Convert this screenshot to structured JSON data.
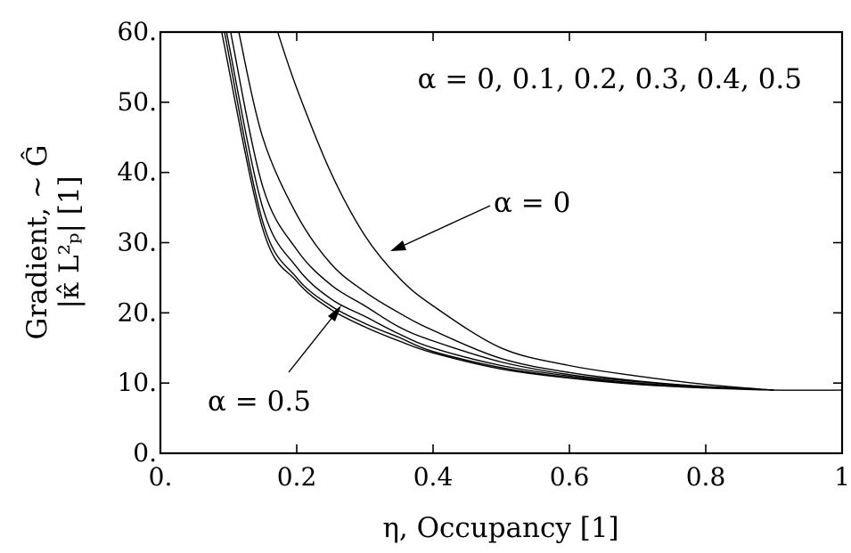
{
  "chart_data": {
    "type": "line",
    "xlabel": "η, Occupancy [1]",
    "ylabel_line1": "Gradient, ∼ Ĝ",
    "ylabel_line2": "|κ̂ L²ₚ|  [1]",
    "xlim": [
      0,
      1
    ],
    "ylim": [
      0,
      60
    ],
    "xticks": [
      0,
      0.2,
      0.4,
      0.6,
      0.8,
      1
    ],
    "xtick_labels": [
      "0.",
      "0.2",
      "0.4",
      "0.6",
      "0.8",
      "1"
    ],
    "yticks": [
      0,
      10,
      20,
      30,
      40,
      50,
      60
    ],
    "ytick_labels": [
      "0.",
      "10.",
      "20.",
      "30.",
      "40.",
      "50.",
      "60."
    ],
    "grid": false,
    "legend": "none",
    "annotations": {
      "alpha_list": "α = 0, 0.1, 0.2, 0.3, 0.4, 0.5",
      "alpha_zero": "α = 0",
      "alpha_half": "α = 0.5"
    },
    "series": [
      {
        "name": "α = 0",
        "x": [
          0.172,
          0.2,
          0.25,
          0.3,
          0.35,
          0.4,
          0.5,
          0.6,
          0.7,
          0.8,
          0.9
        ],
        "y": [
          60,
          52,
          40,
          31,
          25,
          21,
          15,
          12.5,
          11,
          9.8,
          9.0
        ]
      },
      {
        "name": "α = 0.1",
        "x": [
          0.115,
          0.15,
          0.2,
          0.25,
          0.3,
          0.35,
          0.4,
          0.5,
          0.6,
          0.7,
          0.8,
          0.9
        ],
        "y": [
          60,
          45,
          34,
          27,
          23,
          20,
          17.5,
          13.5,
          11.5,
          10.3,
          9.5,
          9.0
        ]
      },
      {
        "name": "α = 0.2",
        "x": [
          0.103,
          0.15,
          0.2,
          0.25,
          0.3,
          0.35,
          0.4,
          0.5,
          0.6,
          0.7,
          0.8,
          0.9
        ],
        "y": [
          60,
          38,
          29,
          24,
          21,
          18,
          16,
          13,
          11.2,
          10.2,
          9.5,
          9.0
        ]
      },
      {
        "name": "α = 0.3",
        "x": [
          0.097,
          0.15,
          0.2,
          0.25,
          0.3,
          0.35,
          0.4,
          0.5,
          0.6,
          0.7,
          0.8,
          0.9
        ],
        "y": [
          60,
          35,
          26.5,
          22,
          19.5,
          17,
          15,
          12.5,
          11,
          10,
          9.4,
          9.0
        ]
      },
      {
        "name": "α = 0.4",
        "x": [
          0.094,
          0.15,
          0.2,
          0.25,
          0.3,
          0.35,
          0.4,
          0.5,
          0.6,
          0.7,
          0.8,
          0.9
        ],
        "y": [
          60,
          33,
          25,
          21,
          18.5,
          16.5,
          14.5,
          12.2,
          10.8,
          9.9,
          9.4,
          9.0
        ]
      },
      {
        "name": "α = 0.5",
        "x": [
          0.09,
          0.15,
          0.2,
          0.25,
          0.3,
          0.35,
          0.4,
          0.5,
          0.6,
          0.7,
          0.8,
          0.9,
          1.0
        ],
        "y": [
          60,
          32,
          24.5,
          20.5,
          18,
          16,
          14.3,
          12,
          10.7,
          9.8,
          9.3,
          9.0,
          9.0
        ]
      }
    ]
  }
}
